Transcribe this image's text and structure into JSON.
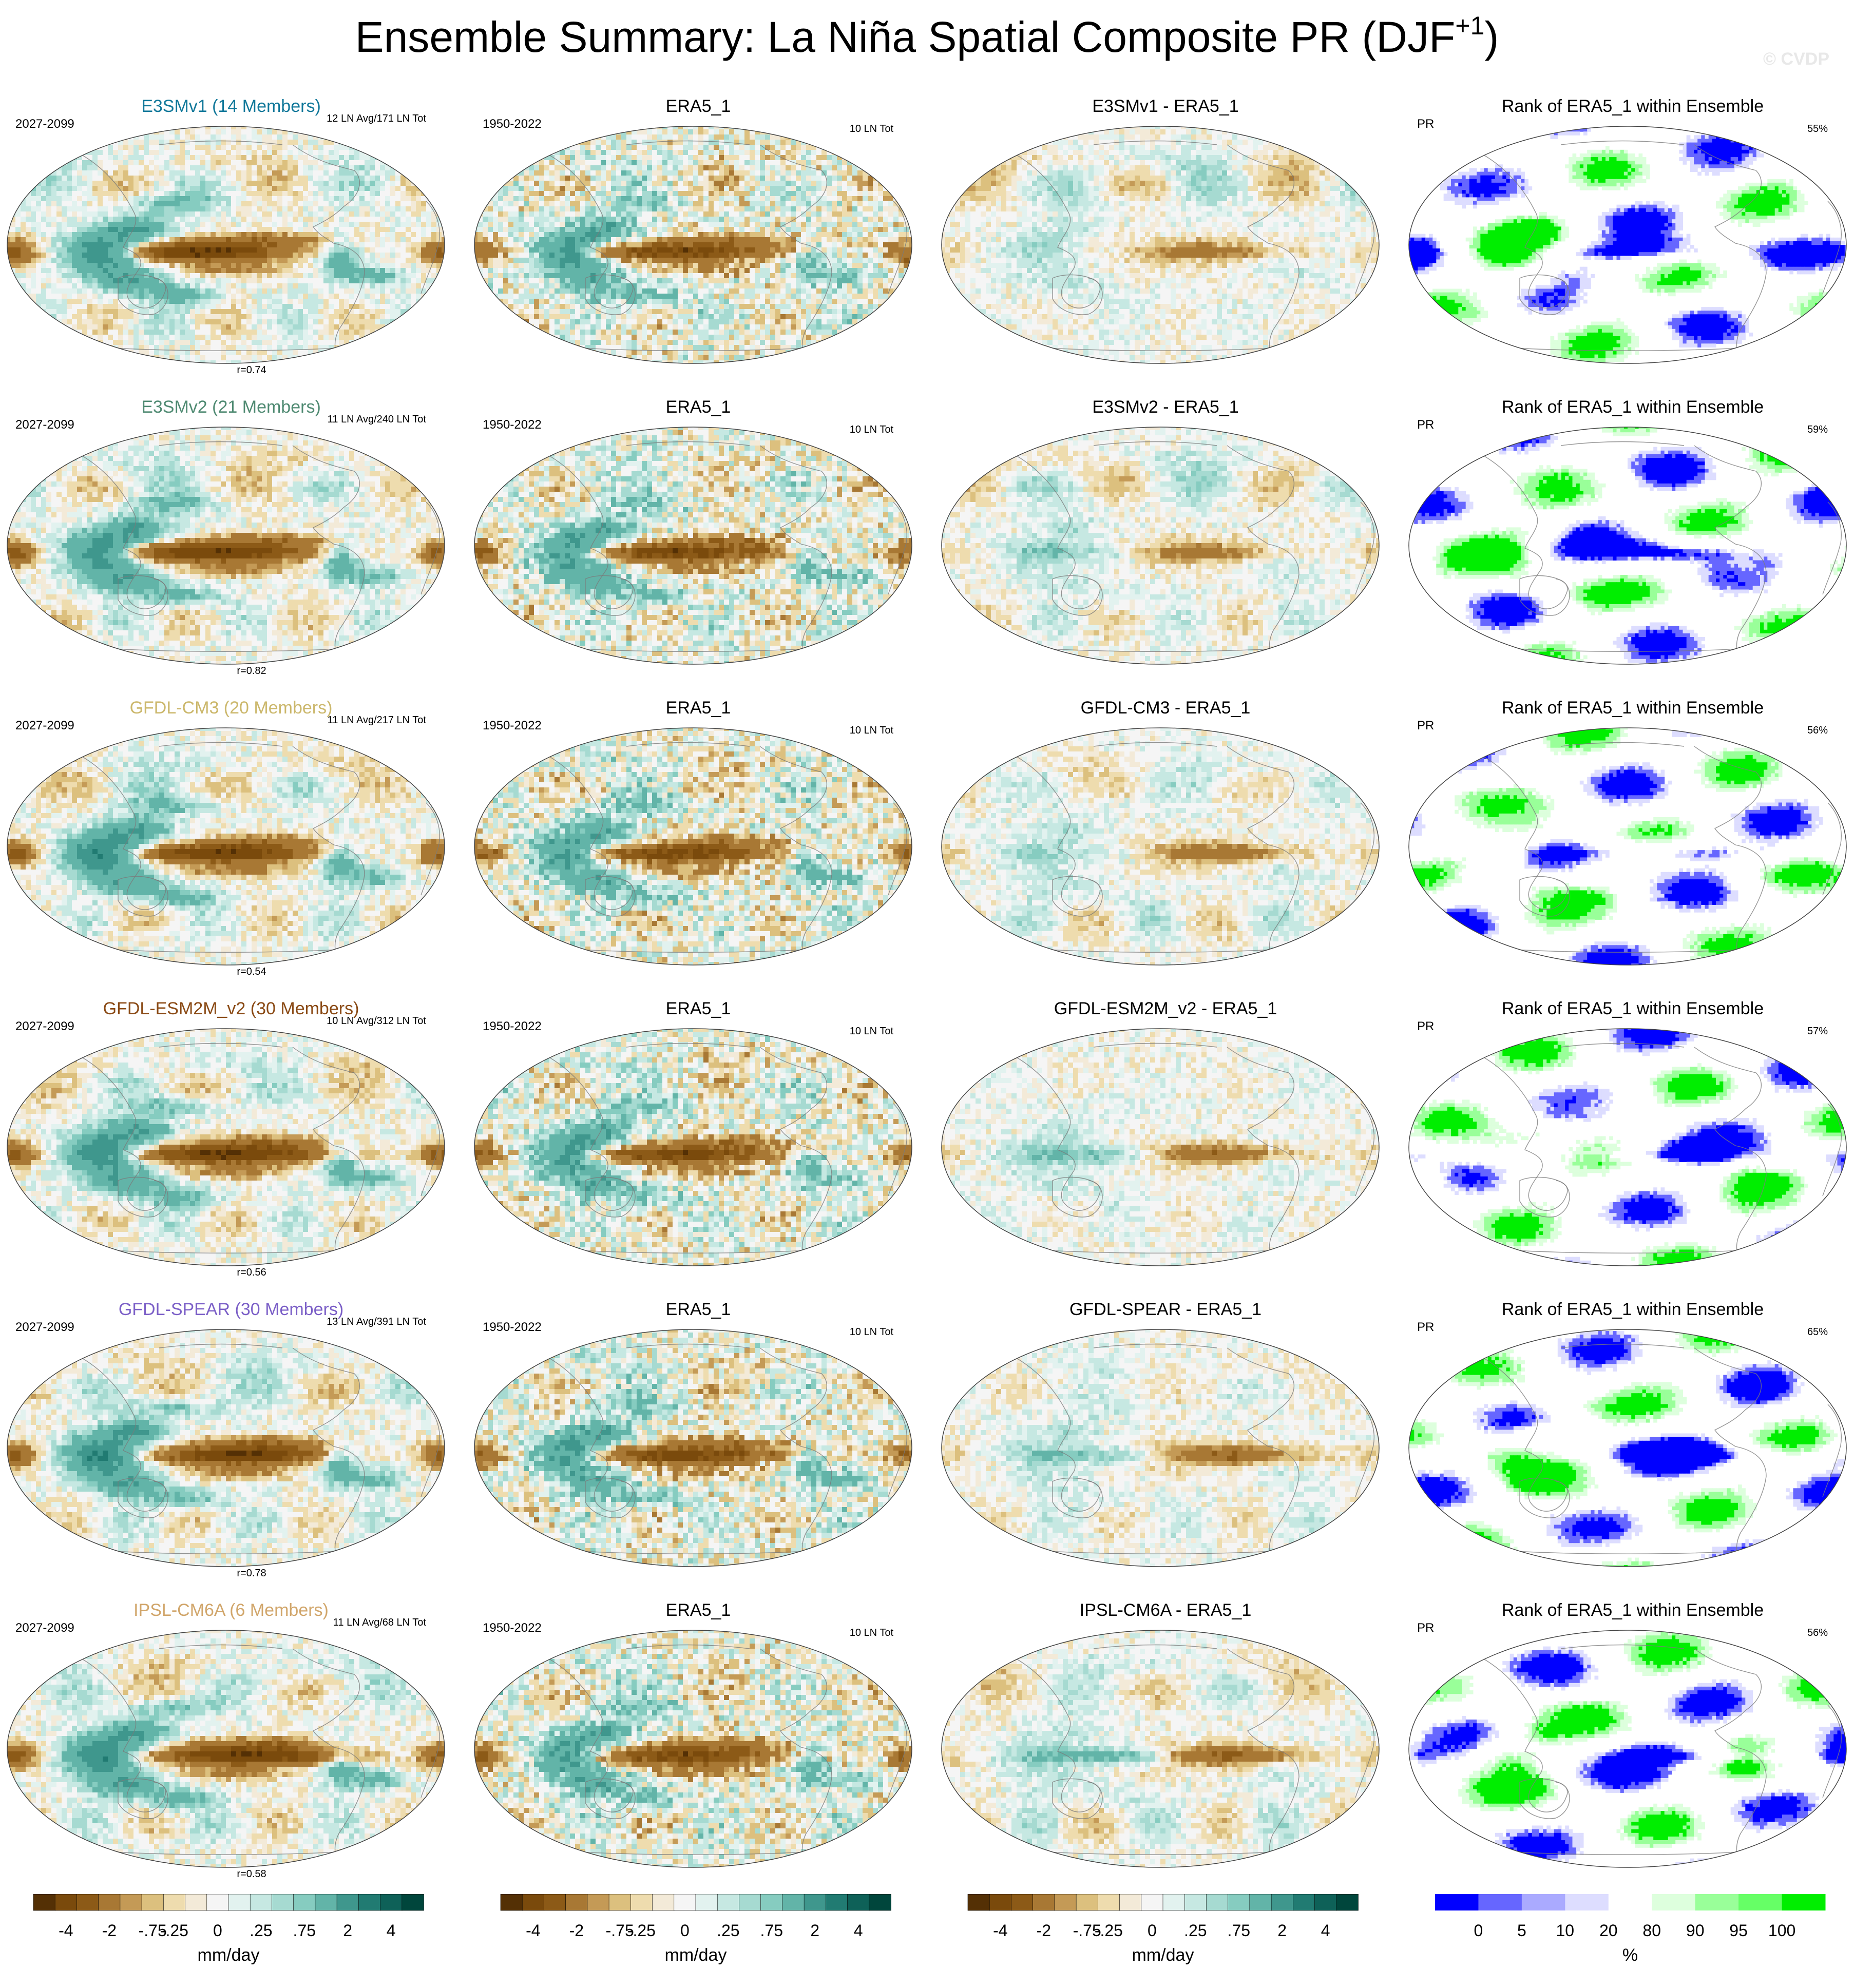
{
  "title": {
    "main": "Ensemble Summary: La Niña Spatial Composite PR (DJF",
    "superscript": "+1",
    "close": ")"
  },
  "copyright": "© CVDP",
  "colors": {
    "diverging": [
      "#543005",
      "#7a4a0c",
      "#8c5a17",
      "#a87834",
      "#c49a56",
      "#dcc07e",
      "#eedcae",
      "#f3ead8",
      "#f5f5f5",
      "#e2f2ef",
      "#c6e8e2",
      "#a6dad1",
      "#86ccc0",
      "#62b4a8",
      "#3f978d",
      "#217b72",
      "#0e6158",
      "#00463c"
    ],
    "rank": [
      "#0000ff",
      "#6666ff",
      "#aaaaff",
      "#ddddff",
      "#ffffff",
      "#ffffff",
      "#ddffdd",
      "#99ff99",
      "#66ff66",
      "#00ee00"
    ],
    "model_title_colors": {
      "E3SMv1": "#11789a",
      "E3SMv2": "#4f8a72",
      "GFDL-CM3": "#cbb76b",
      "GFDL-ESM2M_v2": "#8a4a15",
      "GFDL-SPEAR": "#7b5fc7",
      "IPSL-CM6A": "#d1a66b"
    }
  },
  "rows": [
    {
      "model_title": "E3SMv1 (14 Members)",
      "model_color": "#11789a",
      "period": "2027-2099",
      "ln_stats": "12 LN Avg/171 LN Tot",
      "corr": "r=0.74",
      "obs_title": "ERA5_1",
      "obs_period": "1950-2022",
      "obs_ln": "10 LN Tot",
      "diff_title": "E3SMv1 - ERA5_1",
      "rank_title": "Rank of ERA5_1 within Ensemble",
      "rank_var": "PR",
      "rank_pct": "55%"
    },
    {
      "model_title": "E3SMv2 (21 Members)",
      "model_color": "#4f8a72",
      "period": "2027-2099",
      "ln_stats": "11 LN Avg/240 LN Tot",
      "corr": "r=0.82",
      "obs_title": "ERA5_1",
      "obs_period": "1950-2022",
      "obs_ln": "10 LN Tot",
      "diff_title": "E3SMv2 - ERA5_1",
      "rank_title": "Rank of ERA5_1 within Ensemble",
      "rank_var": "PR",
      "rank_pct": "59%"
    },
    {
      "model_title": "GFDL-CM3 (20 Members)",
      "model_color": "#cbb76b",
      "period": "2027-2099",
      "ln_stats": "11 LN Avg/217 LN Tot",
      "corr": "r=0.54",
      "obs_title": "ERA5_1",
      "obs_period": "1950-2022",
      "obs_ln": "10 LN Tot",
      "diff_title": "GFDL-CM3 - ERA5_1",
      "rank_title": "Rank of ERA5_1 within Ensemble",
      "rank_var": "PR",
      "rank_pct": "56%"
    },
    {
      "model_title": "GFDL-ESM2M_v2 (30 Members)",
      "model_color": "#8a4a15",
      "period": "2027-2099",
      "ln_stats": "10 LN Avg/312 LN Tot",
      "corr": "r=0.56",
      "obs_title": "ERA5_1",
      "obs_period": "1950-2022",
      "obs_ln": "10 LN Tot",
      "diff_title": "GFDL-ESM2M_v2 - ERA5_1",
      "rank_title": "Rank of ERA5_1 within Ensemble",
      "rank_var": "PR",
      "rank_pct": "57%"
    },
    {
      "model_title": "GFDL-SPEAR (30 Members)",
      "model_color": "#7b5fc7",
      "period": "2027-2099",
      "ln_stats": "13 LN Avg/391 LN Tot",
      "corr": "r=0.78",
      "obs_title": "ERA5_1",
      "obs_period": "1950-2022",
      "obs_ln": "10 LN Tot",
      "diff_title": "GFDL-SPEAR - ERA5_1",
      "rank_title": "Rank of ERA5_1 within Ensemble",
      "rank_var": "PR",
      "rank_pct": "65%"
    },
    {
      "model_title": "IPSL-CM6A (6 Members)",
      "model_color": "#d1a66b",
      "period": "2027-2099",
      "ln_stats": "11 LN Avg/68 LN Tot",
      "corr": "r=0.58",
      "obs_title": "ERA5_1",
      "obs_period": "1950-2022",
      "obs_ln": "10 LN Tot",
      "diff_title": "IPSL-CM6A - ERA5_1",
      "rank_title": "Rank of ERA5_1 within Ensemble",
      "rank_var": "PR",
      "rank_pct": "56%"
    }
  ],
  "colorbar_mm": {
    "labels": [
      "-4",
      "-2",
      "-.75",
      "-.25",
      "0",
      ".25",
      ".75",
      "2",
      "4"
    ],
    "unit": "mm/day"
  },
  "colorbar_rank": {
    "labels": [
      "0",
      "5",
      "10",
      "20",
      "80",
      "90",
      "95",
      "100"
    ],
    "unit": "%"
  }
}
